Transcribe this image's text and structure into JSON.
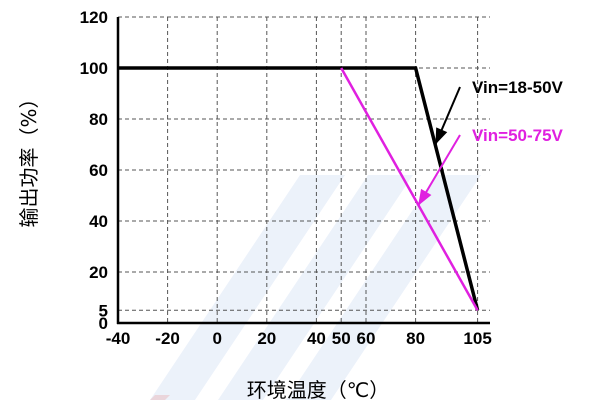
{
  "chart_data": {
    "type": "line",
    "xlabel": "环境温度（℃）",
    "ylabel": "输出功率（%）",
    "xlim": [
      -40,
      110
    ],
    "ylim": [
      0,
      120
    ],
    "x_ticks": [
      {
        "value": -40,
        "label": "-40"
      },
      {
        "value": -20,
        "label": "-20"
      },
      {
        "value": 0,
        "label": "0"
      },
      {
        "value": 20,
        "label": "20"
      },
      {
        "value": 40,
        "label": "40"
      },
      {
        "value": 50,
        "label": "50"
      },
      {
        "value": 60,
        "label": "60"
      },
      {
        "value": 80,
        "label": "80"
      },
      {
        "value": 105,
        "label": "105"
      }
    ],
    "y_ticks": [
      {
        "value": 0,
        "label": "0"
      },
      {
        "value": 5,
        "label": "5"
      },
      {
        "value": 20,
        "label": "20"
      },
      {
        "value": 40,
        "label": "40"
      },
      {
        "value": 60,
        "label": "60"
      },
      {
        "value": 80,
        "label": "80"
      },
      {
        "value": 100,
        "label": "100"
      },
      {
        "value": 120,
        "label": "120"
      }
    ],
    "grid": true,
    "series": [
      {
        "name": "Vin=18-50V",
        "color": "#000000",
        "x": [
          -40,
          80,
          105
        ],
        "y": [
          100,
          100,
          5
        ]
      },
      {
        "name": "Vin=50-75V",
        "color": "#e020e0",
        "x": [
          50,
          105
        ],
        "y": [
          100,
          5
        ]
      }
    ],
    "annotations": [
      {
        "series": 0,
        "text": "Vin=18-50V",
        "color": "#000000",
        "arrow_target": {
          "x": 88,
          "y": 70
        }
      },
      {
        "series": 1,
        "text": "Vin=50-75V",
        "color": "#e020e0",
        "arrow_target": {
          "x": 81,
          "y": 46
        }
      }
    ]
  }
}
